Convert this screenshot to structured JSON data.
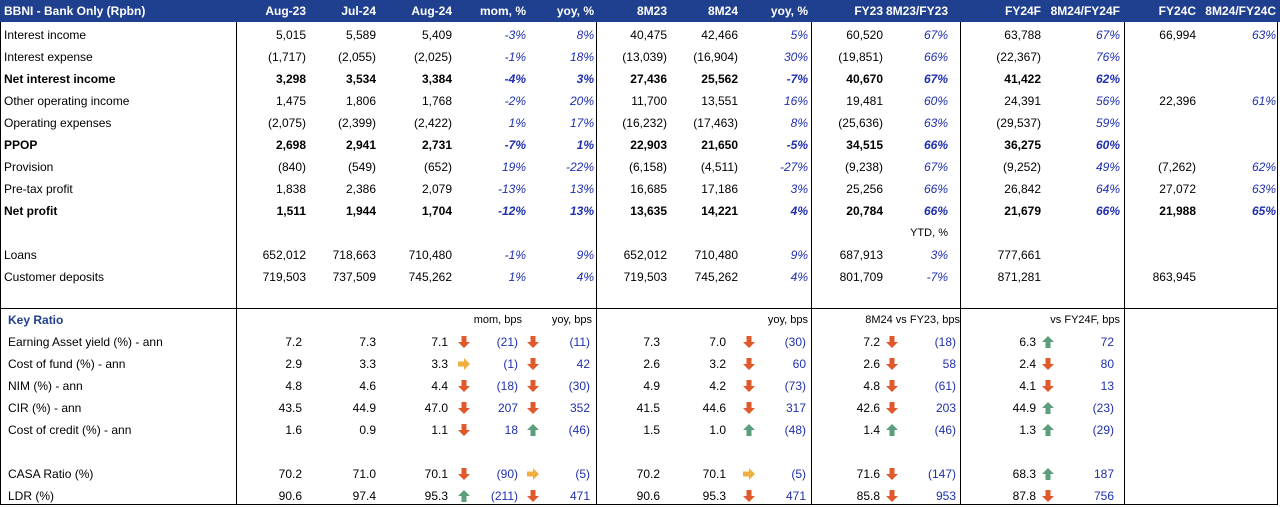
{
  "header": [
    "BBNI - Bank Only (Rpbn)",
    "Aug-23",
    "Jul-24",
    "Aug-24",
    "mom, %",
    "yoy, %",
    "8M23",
    "8M24",
    "yoy, %",
    "FY23",
    "8M23/FY23",
    "FY24F",
    "8M24/FY24F",
    "FY24C",
    "8M24/FY24C"
  ],
  "income_rows": [
    {
      "label": "Interest income",
      "bold": false,
      "cells": [
        "5,015",
        "5,589",
        "5,409",
        "-3%",
        "8%",
        "40,475",
        "42,466",
        "5%",
        "60,520",
        "67%",
        "63,788",
        "67%",
        "66,994",
        "63%"
      ]
    },
    {
      "label": "Interest expense",
      "bold": false,
      "cells": [
        "(1,717)",
        "(2,055)",
        "(2,025)",
        "-1%",
        "18%",
        "(13,039)",
        "(16,904)",
        "30%",
        "(19,851)",
        "66%",
        "(22,367)",
        "76%",
        "",
        ""
      ]
    },
    {
      "label": "Net interest income",
      "bold": true,
      "cells": [
        "3,298",
        "3,534",
        "3,384",
        "-4%",
        "3%",
        "27,436",
        "25,562",
        "-7%",
        "40,670",
        "67%",
        "41,422",
        "62%",
        "",
        ""
      ]
    },
    {
      "label": "Other operating income",
      "bold": false,
      "cells": [
        "1,475",
        "1,806",
        "1,768",
        "-2%",
        "20%",
        "11,700",
        "13,551",
        "16%",
        "19,481",
        "60%",
        "24,391",
        "56%",
        "22,396",
        "61%"
      ]
    },
    {
      "label": "Operating expenses",
      "bold": false,
      "cells": [
        "(2,075)",
        "(2,399)",
        "(2,422)",
        "1%",
        "17%",
        "(16,232)",
        "(17,463)",
        "8%",
        "(25,636)",
        "63%",
        "(29,537)",
        "59%",
        "",
        ""
      ]
    },
    {
      "label": "PPOP",
      "bold": true,
      "cells": [
        "2,698",
        "2,941",
        "2,731",
        "-7%",
        "1%",
        "22,903",
        "21,650",
        "-5%",
        "34,515",
        "66%",
        "36,275",
        "60%",
        "",
        ""
      ]
    },
    {
      "label": "Provision",
      "bold": false,
      "cells": [
        "(840)",
        "(549)",
        "(652)",
        "19%",
        "-22%",
        "(6,158)",
        "(4,511)",
        "-27%",
        "(9,238)",
        "67%",
        "(9,252)",
        "49%",
        "(7,262)",
        "62%"
      ]
    },
    {
      "label": "Pre-tax profit",
      "bold": false,
      "cells": [
        "1,838",
        "2,386",
        "2,079",
        "-13%",
        "13%",
        "16,685",
        "17,186",
        "3%",
        "25,256",
        "66%",
        "26,842",
        "64%",
        "27,072",
        "63%"
      ]
    },
    {
      "label": "Net profit",
      "bold": true,
      "cells": [
        "1,511",
        "1,944",
        "1,704",
        "-12%",
        "13%",
        "13,635",
        "14,221",
        "4%",
        "20,784",
        "66%",
        "21,679",
        "66%",
        "21,988",
        "65%"
      ]
    }
  ],
  "ytd_label": "YTD, %",
  "balance_rows": [
    {
      "label": "Loans",
      "bold": false,
      "cells": [
        "652,012",
        "718,663",
        "710,480",
        "-1%",
        "9%",
        "652,012",
        "710,480",
        "9%",
        "687,913",
        "3%",
        "777,661",
        "",
        "",
        ""
      ]
    },
    {
      "label": "Customer deposits",
      "bold": false,
      "cells": [
        "719,503",
        "737,509",
        "745,262",
        "1%",
        "4%",
        "719,503",
        "745,262",
        "4%",
        "801,709",
        "-7%",
        "871,281",
        "",
        "863,945",
        ""
      ]
    }
  ],
  "ratio_section": {
    "title": "Key Ratio",
    "sub_headers": {
      "mom": "mom, bps",
      "yoy": "yoy, bps",
      "yoy2": "yoy, bps",
      "vs_fy23": "8M24 vs FY23, bps",
      "vs_fy24f": "vs FY24F, bps"
    },
    "rows": [
      {
        "label": "Earning Asset yield (%) - ann",
        "aug23": "7.2",
        "jul24": "7.3",
        "aug24": "7.1",
        "aug24_arrow": "down",
        "mom": "(21)",
        "mom_arrow": "down",
        "yoy": "(11)",
        "m23": "7.3",
        "m24": "7.0",
        "m24_arrow": "down",
        "yoy2": "(30)",
        "fy23": "7.2",
        "fy23_arrow": "down",
        "vs23": "(18)",
        "fy24f": "6.3",
        "fy24f_arrow": "up",
        "vs24": "72"
      },
      {
        "label": "Cost of fund (%) - ann",
        "aug23": "2.9",
        "jul24": "3.3",
        "aug24": "3.3",
        "aug24_arrow": "right",
        "mom": "(1)",
        "mom_arrow": "down",
        "yoy": "42",
        "m23": "2.6",
        "m24": "3.2",
        "m24_arrow": "down",
        "yoy2": "60",
        "fy23": "2.6",
        "fy23_arrow": "down",
        "vs23": "58",
        "fy24f": "2.4",
        "fy24f_arrow": "down",
        "vs24": "80"
      },
      {
        "label": "NIM (%) - ann",
        "aug23": "4.8",
        "jul24": "4.6",
        "aug24": "4.4",
        "aug24_arrow": "down",
        "mom": "(18)",
        "mom_arrow": "down",
        "yoy": "(30)",
        "m23": "4.9",
        "m24": "4.2",
        "m24_arrow": "down",
        "yoy2": "(73)",
        "fy23": "4.8",
        "fy23_arrow": "down",
        "vs23": "(61)",
        "fy24f": "4.1",
        "fy24f_arrow": "down",
        "vs24": "13"
      },
      {
        "label": "CIR (%) - ann",
        "aug23": "43.5",
        "jul24": "44.9",
        "aug24": "47.0",
        "aug24_arrow": "down",
        "mom": "207",
        "mom_arrow": "down",
        "yoy": "352",
        "m23": "41.5",
        "m24": "44.6",
        "m24_arrow": "down",
        "yoy2": "317",
        "fy23": "42.6",
        "fy23_arrow": "down",
        "vs23": "203",
        "fy24f": "44.9",
        "fy24f_arrow": "up",
        "vs24": "(23)"
      },
      {
        "label": "Cost of credit (%) - ann",
        "aug23": "1.6",
        "jul24": "0.9",
        "aug24": "1.1",
        "aug24_arrow": "down",
        "mom": "18",
        "mom_arrow": "up",
        "yoy": "(46)",
        "m23": "1.5",
        "m24": "1.0",
        "m24_arrow": "up",
        "yoy2": "(48)",
        "fy23": "1.4",
        "fy23_arrow": "up",
        "vs23": "(46)",
        "fy24f": "1.3",
        "fy24f_arrow": "up",
        "vs24": "(29)"
      },
      {
        "label": "CASA Ratio (%)",
        "aug23": "70.2",
        "jul24": "71.0",
        "aug24": "70.1",
        "aug24_arrow": "down",
        "mom": "(90)",
        "mom_arrow": "right",
        "yoy": "(5)",
        "m23": "70.2",
        "m24": "70.1",
        "m24_arrow": "right",
        "yoy2": "(5)",
        "fy23": "71.6",
        "fy23_arrow": "down",
        "vs23": "(147)",
        "fy24f": "68.3",
        "fy24f_arrow": "up",
        "vs24": "187"
      },
      {
        "label": "LDR (%)",
        "aug23": "90.6",
        "jul24": "97.4",
        "aug24": "95.3",
        "aug24_arrow": "up",
        "mom": "(211)",
        "mom_arrow": "down",
        "yoy": "471",
        "m23": "90.6",
        "m24": "95.3",
        "m24_arrow": "down",
        "yoy2": "471",
        "fy23": "85.8",
        "fy23_arrow": "down",
        "vs23": "953",
        "fy24f": "87.8",
        "fy24f_arrow": "down",
        "vs24": "756"
      }
    ]
  },
  "colors": {
    "header_bg": "#1f3f8f",
    "pct_text": "#1f2fae",
    "arrow_up": "#5a9e7c",
    "arrow_down": "#e0592b",
    "arrow_right": "#f0b040"
  }
}
